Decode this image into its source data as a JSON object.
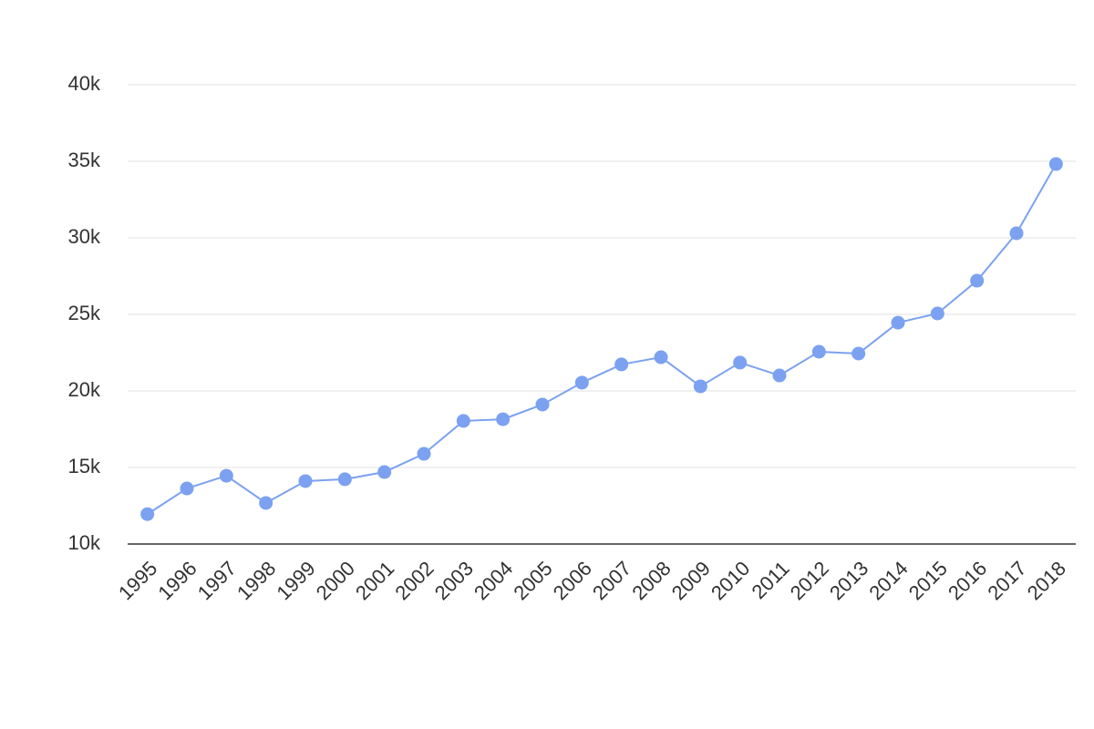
{
  "chart_data": {
    "type": "line",
    "categories": [
      "1995",
      "1996",
      "1997",
      "1998",
      "1999",
      "2000",
      "2001",
      "2002",
      "2003",
      "2004",
      "2005",
      "2006",
      "2007",
      "2008",
      "2009",
      "2010",
      "2011",
      "2012",
      "2013",
      "2014",
      "2015",
      "2016",
      "2017",
      "2018"
    ],
    "values": [
      11950,
      13630,
      14460,
      12680,
      14110,
      14230,
      14700,
      15890,
      18040,
      18150,
      19110,
      20540,
      21730,
      22200,
      20300,
      21850,
      21010,
      22560,
      22440,
      24460,
      25060,
      27200,
      30300,
      34820
    ],
    "color": "#7ba1f0",
    "ylim": [
      10000,
      40000
    ],
    "yticks": [
      {
        "value": 10000,
        "label": "10k"
      },
      {
        "value": 15000,
        "label": "15k"
      },
      {
        "value": 20000,
        "label": "20k"
      },
      {
        "value": 25000,
        "label": "25k"
      },
      {
        "value": 30000,
        "label": "30k"
      },
      {
        "value": 35000,
        "label": "35k"
      },
      {
        "value": 40000,
        "label": "40k"
      }
    ],
    "grid": true
  }
}
